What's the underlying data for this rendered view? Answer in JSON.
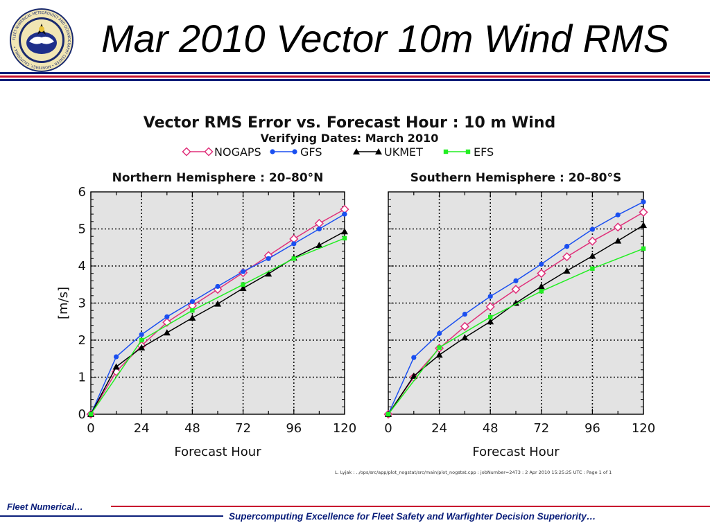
{
  "slide": {
    "title": "Mar 2010 Vector 10m Wind RMS",
    "footer_left": "Fleet Numerical…",
    "footer_right": "Supercomputing Excellence for Fleet Safety and Warfighter Decision Superiority…",
    "logo": {
      "icon": "fleet-numerical-seal-icon",
      "ring_text": "FLEET NUMERICAL METEOROLOGY AND OCEANOGRAPHY CENTER • MONTEREY, CALIFORNIA •"
    },
    "colors": {
      "navy": "#0a1e7a",
      "red": "#c8102e"
    }
  },
  "chart_data": {
    "type": "line",
    "title": "Vector RMS Error vs. Forecast Hour : 10 m Wind",
    "subtitle": "Verifying Dates: March 2010",
    "ylabel": "[m/s]",
    "xlabel": "Forecast Hour",
    "legend_placement": "top-center",
    "grid": true,
    "credit": "L. Lyjak : ../ops/src/app/plot_nogstat/src/main/plot_nogstat.cpp : jobNumber=2473 : 2 Apr 2010 15:25:25 UTC : Page 1 of 1",
    "x_ticks": [
      0,
      24,
      48,
      72,
      96,
      120
    ],
    "y_ticks": [
      0,
      1,
      2,
      3,
      4,
      5,
      6
    ],
    "xlim": [
      0,
      120
    ],
    "ylim": [
      0,
      6
    ],
    "series_styles": [
      {
        "name": "NOGAPS",
        "color": "#e0307a",
        "marker": "diamond-open"
      },
      {
        "name": "GFS",
        "color": "#1a4ff0",
        "marker": "circle-filled"
      },
      {
        "name": "UKMET",
        "color": "#000000",
        "marker": "triangle-filled"
      },
      {
        "name": "EFS",
        "color": "#22ee22",
        "marker": "square-filled"
      }
    ],
    "panels": [
      {
        "title": "Northern Hemisphere : 20–80°N",
        "series": [
          {
            "name": "NOGAPS",
            "x": [
              0,
              12,
              24,
              36,
              48,
              60,
              72,
              84,
              96,
              108,
              120
            ],
            "values": [
              0,
              1.15,
              1.85,
              2.48,
              2.93,
              3.37,
              3.82,
              4.28,
              4.73,
              5.15,
              5.53
            ]
          },
          {
            "name": "GFS",
            "x": [
              0,
              12,
              24,
              36,
              48,
              60,
              72,
              84,
              96,
              108,
              120
            ],
            "values": [
              0,
              1.55,
              2.15,
              2.63,
              3.04,
              3.45,
              3.85,
              4.2,
              4.6,
              5.0,
              5.4
            ]
          },
          {
            "name": "UKMET",
            "x": [
              0,
              12,
              24,
              36,
              48,
              60,
              72,
              84,
              96,
              108,
              120
            ],
            "values": [
              0,
              1.28,
              1.8,
              2.2,
              2.6,
              2.98,
              3.4,
              3.79,
              4.22,
              4.56,
              4.93
            ]
          },
          {
            "name": "EFS",
            "x": [
              0,
              24,
              48,
              72,
              96,
              120
            ],
            "values": [
              0,
              2.0,
              2.8,
              3.5,
              4.2,
              4.75
            ]
          }
        ]
      },
      {
        "title": "Southern Hemisphere : 20–80°S",
        "series": [
          {
            "name": "NOGAPS",
            "x": [
              0,
              12,
              24,
              36,
              48,
              60,
              72,
              84,
              96,
              108,
              120
            ],
            "values": [
              0,
              1.0,
              1.78,
              2.37,
              2.9,
              3.37,
              3.8,
              4.25,
              4.67,
              5.05,
              5.45
            ]
          },
          {
            "name": "GFS",
            "x": [
              0,
              12,
              24,
              36,
              48,
              60,
              72,
              84,
              96,
              108,
              120
            ],
            "values": [
              0,
              1.53,
              2.18,
              2.7,
              3.18,
              3.6,
              4.05,
              4.53,
              4.99,
              5.38,
              5.73
            ]
          },
          {
            "name": "UKMET",
            "x": [
              0,
              12,
              24,
              36,
              48,
              60,
              72,
              84,
              96,
              108,
              120
            ],
            "values": [
              0,
              1.03,
              1.6,
              2.07,
              2.5,
              3.0,
              3.45,
              3.87,
              4.27,
              4.68,
              5.1
            ]
          },
          {
            "name": "EFS",
            "x": [
              0,
              24,
              48,
              72,
              96,
              120
            ],
            "values": [
              0,
              1.8,
              2.62,
              3.32,
              3.93,
              4.47
            ]
          }
        ]
      }
    ]
  }
}
